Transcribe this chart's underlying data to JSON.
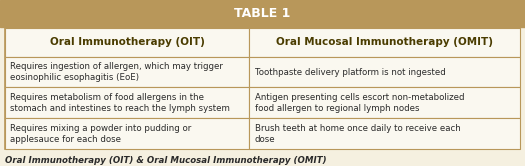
{
  "title": "TABLE 1",
  "title_bg": "#b8975a",
  "title_color": "#ffffff",
  "outer_bg": "#f5f0e0",
  "table_bg": "#faf8f0",
  "header_left": "Oral Immunotherapy (OIT)",
  "header_right": "Oral Mucosal Immunotherapy (OMIT)",
  "rows": [
    [
      "Requires ingestion of allergen, which may trigger\neosinophilic esophagitis (EoE)",
      "Toothpaste delivery platform is not ingested"
    ],
    [
      "Requires metabolism of food allergens in the\nstomach and intestines to reach the lymph system",
      "Antigen presenting cells escort non-metabolized\nfood allergen to regional lymph nodes"
    ],
    [
      "Requires mixing a powder into pudding or\napplesauce for each dose",
      "Brush teeth at home once daily to receive each\ndose"
    ]
  ],
  "caption": "Oral Immunotherapy (OIT) & Oral Mucosal Immunotherapy (OMIT)",
  "border_color": "#b8975a",
  "header_text_color": "#4a3c00",
  "cell_text_color": "#2a2a2a",
  "caption_text_color": "#2a2a2a",
  "figsize": [
    5.25,
    1.66
  ],
  "dpi": 100
}
